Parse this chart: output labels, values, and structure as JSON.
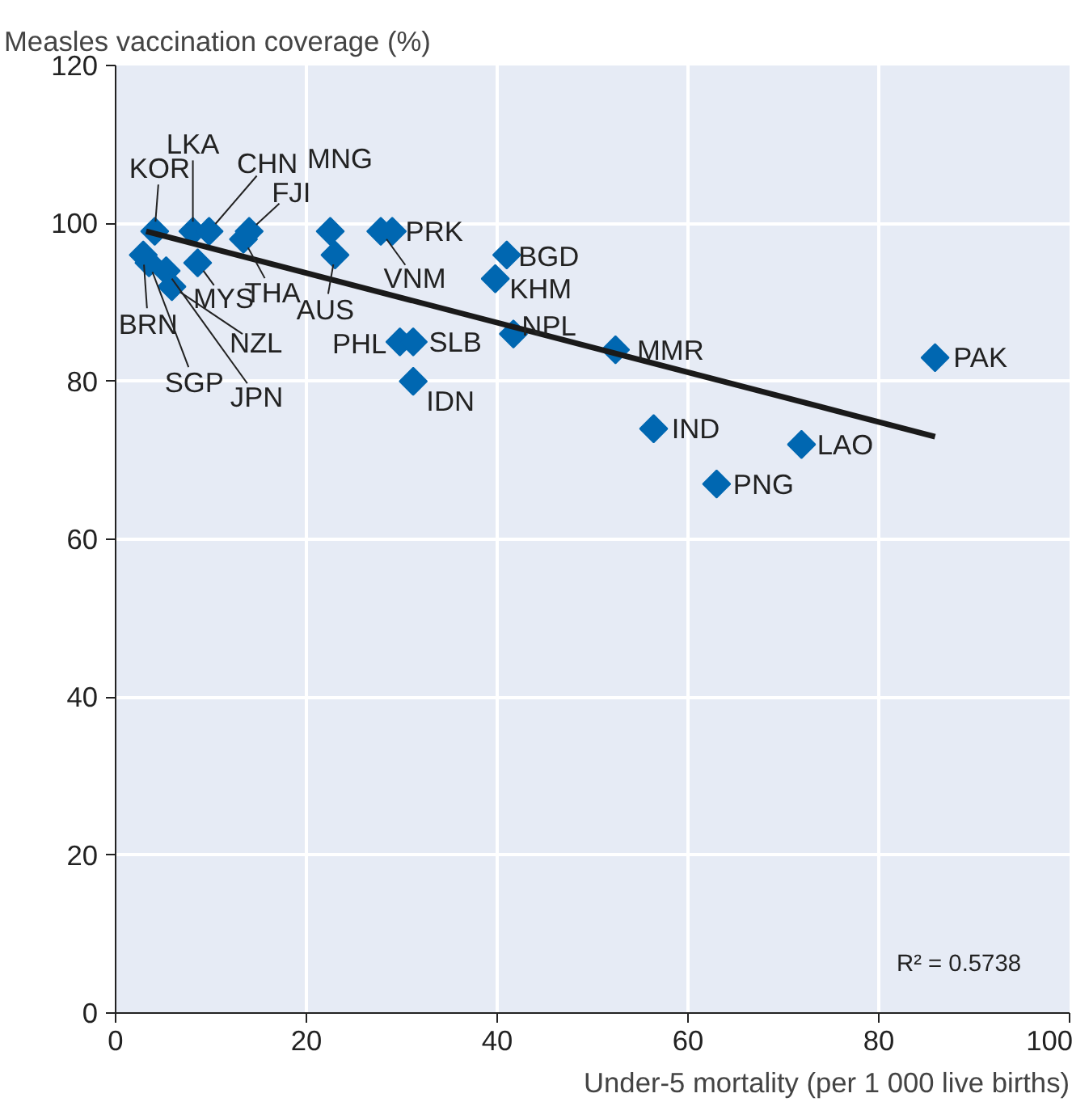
{
  "chart_data": {
    "type": "scatter",
    "title": "Measles vaccination coverage (%)",
    "xlabel": "Under-5 mortality (per 1 000 live births)",
    "xlim": [
      0,
      100
    ],
    "ylim": [
      0,
      120
    ],
    "xticks": [
      0,
      20,
      40,
      60,
      80,
      100
    ],
    "yticks": [
      0,
      20,
      40,
      60,
      80,
      100,
      120
    ],
    "grid": true,
    "marker": "diamond",
    "series": [
      {
        "color": "#0067b1",
        "x": [
          4.1,
          8.1,
          9.8,
          14,
          13.4,
          22.5,
          23,
          27.8,
          29,
          2.9,
          3.5,
          5.3,
          5.9,
          8.6,
          41,
          39.8,
          41.7,
          29.8,
          31.2,
          31.2,
          52.4,
          56.4,
          71.9,
          63,
          85.9
        ],
        "values": [
          99,
          99,
          99,
          99,
          98,
          99,
          96,
          99,
          99,
          96,
          95,
          94,
          92,
          95,
          96,
          93,
          86,
          85,
          85,
          80,
          84,
          74,
          72,
          67,
          83
        ]
      },
      {
        "type": "line",
        "marker": "none",
        "color": "#1a1a1a",
        "x": [
          3.2,
          85.9
        ],
        "values": [
          99,
          73
        ]
      }
    ],
    "annotations": [
      {
        "text": "KOR",
        "x": 4.1,
        "y": 99
      },
      {
        "text": "LKA",
        "x": 8.1,
        "y": 99
      },
      {
        "text": "CHN",
        "x": 9.8,
        "y": 99
      },
      {
        "text": "FJI",
        "x": 14,
        "y": 99
      },
      {
        "text": "THA",
        "x": 13.4,
        "y": 98
      },
      {
        "text": "MNG",
        "x": 22.5,
        "y": 99
      },
      {
        "text": "AUS",
        "x": 23,
        "y": 96
      },
      {
        "text": "VNM",
        "x": 27.8,
        "y": 99
      },
      {
        "text": "PRK",
        "x": 29,
        "y": 99
      },
      {
        "text": "BRN",
        "x": 2.9,
        "y": 96
      },
      {
        "text": "SGP",
        "x": 3.5,
        "y": 95
      },
      {
        "text": "JPN",
        "x": 5.3,
        "y": 94
      },
      {
        "text": "NZL",
        "x": 5.9,
        "y": 92
      },
      {
        "text": "MYS",
        "x": 8.6,
        "y": 95
      },
      {
        "text": "BGD",
        "x": 41,
        "y": 96
      },
      {
        "text": "KHM",
        "x": 39.8,
        "y": 93
      },
      {
        "text": "NPL",
        "x": 41.7,
        "y": 86
      },
      {
        "text": "PHL",
        "x": 29.8,
        "y": 85
      },
      {
        "text": "SLB",
        "x": 31.2,
        "y": 85
      },
      {
        "text": "IDN",
        "x": 31.2,
        "y": 80
      },
      {
        "text": "MMR",
        "x": 52.4,
        "y": 84
      },
      {
        "text": "IND",
        "x": 56.4,
        "y": 74
      },
      {
        "text": "LAO",
        "x": 71.9,
        "y": 72
      },
      {
        "text": "PNG",
        "x": 63,
        "y": 67
      },
      {
        "text": "PAK",
        "x": 85.9,
        "y": 83
      },
      "R² = 0.5738"
    ]
  }
}
